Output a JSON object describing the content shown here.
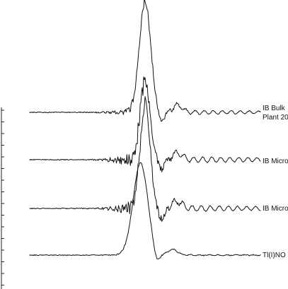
{
  "chart_data": {
    "type": "line",
    "title": "",
    "xlabel": "",
    "ylabel": "",
    "grid": false,
    "legend": "none",
    "line_color": "#111111",
    "series": [
      {
        "name": "IB Bulk",
        "name_line2": "Plant 20",
        "baseline": 0,
        "peak_pos": 0.5,
        "peak_height": 158,
        "peak_width": 0.035,
        "dip": 16,
        "post_bump": 10,
        "noise": 4,
        "pre_noise": 2,
        "ripple_amp": 3.5,
        "seed": 3
      },
      {
        "name": "IB Micro",
        "baseline": 0,
        "peak_pos": 0.5,
        "peak_height": 112,
        "peak_width": 0.03,
        "dip": 14,
        "post_bump": 9,
        "noise": 6,
        "pre_noise": 7,
        "ripple_amp": 5,
        "seed": 11
      },
      {
        "name": "IB Micro",
        "baseline": 0,
        "peak_pos": 0.5,
        "peak_height": 152,
        "peak_width": 0.03,
        "dip": 15,
        "post_bump": 10,
        "noise": 6,
        "pre_noise": 6,
        "ripple_amp": 5,
        "seed": 29
      },
      {
        "name": "Tl(I)NO",
        "baseline": 0,
        "peak_pos": 0.48,
        "peak_height": 130,
        "peak_width": 0.045,
        "dip": 15,
        "post_bump": 8,
        "noise": 0.6,
        "pre_noise": 0.3,
        "ripple_amp": 0.8,
        "seed": 47
      }
    ]
  }
}
